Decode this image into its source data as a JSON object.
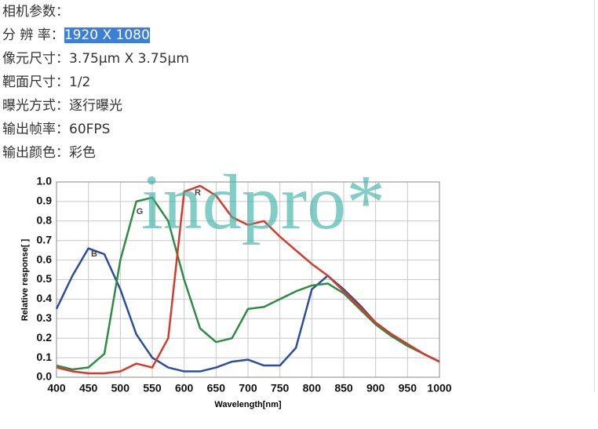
{
  "header": {
    "title": "相机参数："
  },
  "specs": [
    {
      "label": "分 辨 率：",
      "value": "1920 X 1080"
    },
    {
      "label": "像元尺寸：",
      "value": "3.75μm X 3.75μm"
    },
    {
      "label": "靶面尺寸：",
      "value": "1/2"
    },
    {
      "label": "曝光方式：",
      "value": "逐行曝光"
    },
    {
      "label": "输出帧率：",
      "value": "60FPS"
    },
    {
      "label": "输出颜色：",
      "value": "彩色"
    }
  ],
  "watermark": "indpro*",
  "chart_data": {
    "type": "line",
    "x_label": "Wavelength[nm]",
    "y_label": "Relative response[ ]",
    "x": [
      400,
      425,
      450,
      475,
      500,
      525,
      550,
      575,
      600,
      625,
      650,
      675,
      700,
      725,
      750,
      775,
      800,
      825,
      850,
      875,
      900,
      925,
      950,
      975,
      1000
    ],
    "series": [
      {
        "name": "B",
        "color": "#2b4da0",
        "values": [
          0.35,
          0.52,
          0.66,
          0.63,
          0.45,
          0.22,
          0.1,
          0.05,
          0.03,
          0.03,
          0.05,
          0.08,
          0.09,
          0.06,
          0.06,
          0.15,
          0.45,
          0.52,
          0.45,
          0.37,
          0.28,
          0.22,
          0.17,
          0.12,
          0.08
        ]
      },
      {
        "name": "G",
        "color": "#2e8b45",
        "values": [
          0.06,
          0.04,
          0.05,
          0.12,
          0.6,
          0.9,
          0.92,
          0.8,
          0.5,
          0.25,
          0.18,
          0.2,
          0.35,
          0.36,
          0.4,
          0.44,
          0.47,
          0.48,
          0.43,
          0.35,
          0.27,
          0.21,
          0.16,
          0.12,
          0.08
        ]
      },
      {
        "name": "R",
        "color": "#d63a2a",
        "values": [
          0.05,
          0.03,
          0.02,
          0.02,
          0.03,
          0.07,
          0.05,
          0.2,
          0.95,
          0.98,
          0.93,
          0.82,
          0.78,
          0.8,
          0.72,
          0.65,
          0.58,
          0.52,
          0.44,
          0.36,
          0.28,
          0.22,
          0.17,
          0.12,
          0.08
        ]
      }
    ],
    "xlim": [
      400,
      1000
    ],
    "xticks": [
      400,
      450,
      500,
      550,
      600,
      650,
      700,
      750,
      800,
      850,
      900,
      950,
      1000
    ],
    "ylim": [
      0,
      1
    ],
    "yticks": [
      {
        "value": 0,
        "label": "0.0"
      },
      {
        "value": 0.1,
        "label": "0.1"
      },
      {
        "value": 0.2,
        "label": "0.2"
      },
      {
        "value": 0.3,
        "label": "0.3"
      },
      {
        "value": 0.4,
        "label": "0.4"
      },
      {
        "value": 0.5,
        "label": "0.5"
      },
      {
        "value": 0.6,
        "label": "0.6"
      },
      {
        "value": 0.7,
        "label": "0.7"
      },
      {
        "value": 0.8,
        "label": "0.8"
      },
      {
        "value": 0.9,
        "label": "0.9"
      },
      {
        "value": 1,
        "label": "1.0"
      }
    ],
    "grid": true
  }
}
